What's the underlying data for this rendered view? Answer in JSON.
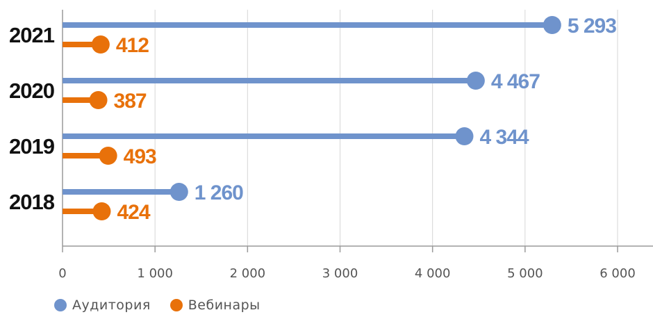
{
  "chart_data": {
    "type": "bar",
    "orientation": "horizontal",
    "style": "lollipop",
    "categories": [
      "2021",
      "2020",
      "2019",
      "2018"
    ],
    "series": [
      {
        "name": "Аудитория",
        "color": "#6f93cc",
        "values": [
          5293,
          4467,
          4344,
          1260
        ]
      },
      {
        "name": "Вебинары",
        "color": "#e8710a",
        "values": [
          412,
          387,
          493,
          424
        ]
      }
    ],
    "value_labels": {
      "Аудитория": [
        "5 293",
        "4 467",
        "4 344",
        "1 260"
      ],
      "Вебинары": [
        "412",
        "387",
        "493",
        "424"
      ]
    },
    "xlim": [
      0,
      6000
    ],
    "x_ticks": [
      0,
      1000,
      2000,
      3000,
      4000,
      5000,
      6000
    ],
    "x_tick_labels": [
      "0",
      "1 000",
      "2 000",
      "3 000",
      "4 000",
      "5 000",
      "6 000"
    ],
    "grid": "vertical",
    "legend_position": "bottom-left"
  },
  "legend": {
    "items": [
      {
        "label": "Аудитория",
        "color": "#6f93cc"
      },
      {
        "label": "Вебинары",
        "color": "#e8710a"
      }
    ]
  }
}
